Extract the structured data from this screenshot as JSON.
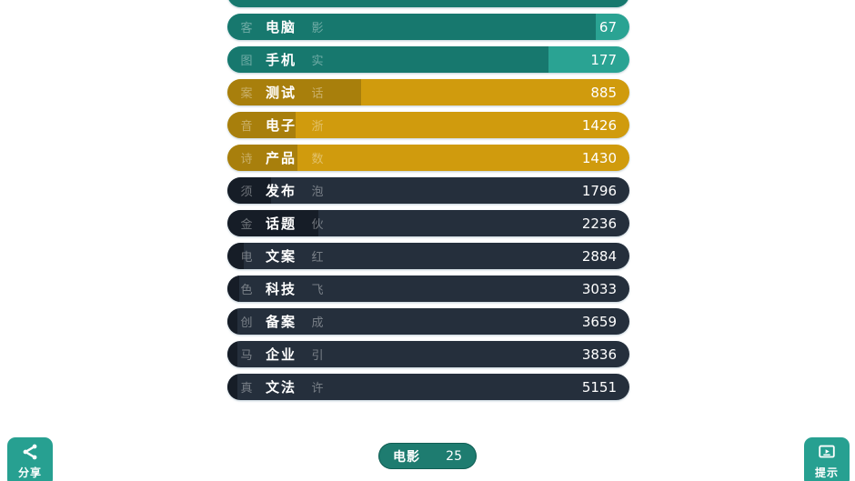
{
  "chart_data": {
    "type": "bar",
    "orientation": "horizontal",
    "title": "",
    "categories": [
      "电脑",
      "手机",
      "测试",
      "电子",
      "产品",
      "发布",
      "话题",
      "文案",
      "科技",
      "备案",
      "企业",
      "文法"
    ],
    "values": [
      67,
      177,
      885,
      1426,
      1430,
      1796,
      2236,
      2884,
      3033,
      3659,
      3836,
      5151
    ],
    "legend": [],
    "grid": false,
    "rows": [
      {
        "label": "电脑",
        "ghost_left": "客",
        "ghost_right": "影",
        "value": "67",
        "theme": "teal",
        "fill_pct": 91.6
      },
      {
        "label": "手机",
        "ghost_left": "图",
        "ghost_right": "实",
        "value": "177",
        "theme": "teal",
        "fill_pct": 79.9
      },
      {
        "label": "测试",
        "ghost_left": "案",
        "ghost_right": "话",
        "value": "885",
        "theme": "gold",
        "fill_pct": 33.3
      },
      {
        "label": "电子",
        "ghost_left": "音",
        "ghost_right": "浙",
        "value": "1426",
        "theme": "gold",
        "fill_pct": 17.0
      },
      {
        "label": "产品",
        "ghost_left": "诗",
        "ghost_right": "数",
        "value": "1430",
        "theme": "gold",
        "fill_pct": 17.4
      },
      {
        "label": "发布",
        "ghost_left": "须",
        "ghost_right": "泡",
        "value": "1796",
        "theme": "navy",
        "fill_pct": 10.9
      },
      {
        "label": "话题",
        "ghost_left": "金",
        "ghost_right": "伙",
        "value": "2236",
        "theme": "navy",
        "fill_pct": 22.6
      },
      {
        "label": "文案",
        "ghost_left": "电",
        "ghost_right": "红",
        "value": "2884",
        "theme": "navy",
        "fill_pct": 4.1
      },
      {
        "label": "科技",
        "ghost_left": "色",
        "ghost_right": "飞",
        "value": "3033",
        "theme": "navy",
        "fill_pct": 3.0
      },
      {
        "label": "备案",
        "ghost_left": "创",
        "ghost_right": "成",
        "value": "3659",
        "theme": "navy",
        "fill_pct": 2.5
      },
      {
        "label": "企业",
        "ghost_left": "马",
        "ghost_right": "引",
        "value": "3836",
        "theme": "navy",
        "fill_pct": 2.5
      },
      {
        "label": "文法",
        "ghost_left": "真",
        "ghost_right": "许",
        "value": "5151",
        "theme": "navy",
        "fill_pct": 2.5
      }
    ],
    "partial_top_bar": {
      "theme": "teal",
      "visible": true
    }
  },
  "footer": {
    "counter_badge": {
      "category": "电影",
      "count": "25"
    },
    "share_button": {
      "label": "分享",
      "icon": "share-icon"
    },
    "hint_button": {
      "label": "提示",
      "icon": "screen-play-icon"
    }
  },
  "colors": {
    "teal_fill": "#17786e",
    "teal_track": "#2aa393",
    "gold_fill": "#a87f0c",
    "gold_track": "#d09b0d",
    "navy_fill": "#161d27",
    "navy_track": "#252f3c",
    "button_teal": "#27a091",
    "badge_teal": "#1e7c70",
    "text": "#ffffff"
  }
}
